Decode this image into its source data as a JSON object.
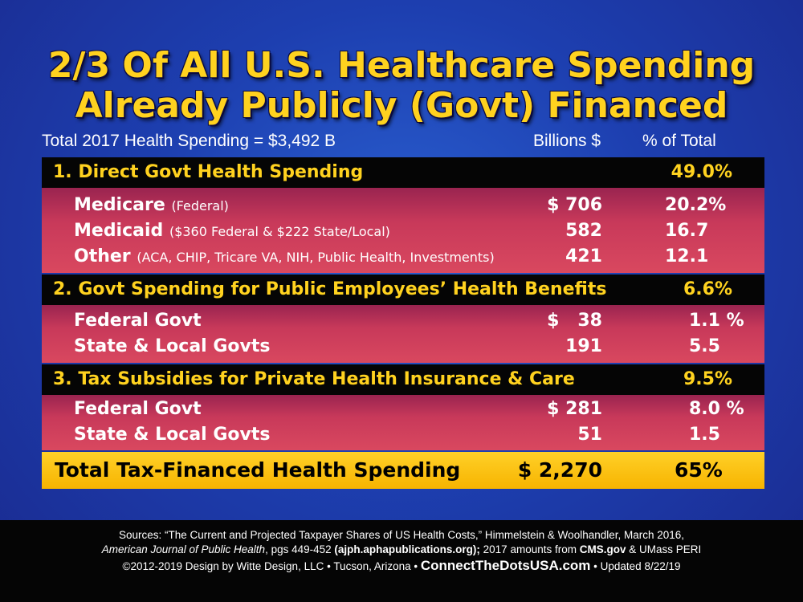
{
  "title": {
    "line1": "2/3 Of All U.S. Healthcare Spending",
    "line2": "Already Publicly (Govt) Financed"
  },
  "subheader": {
    "total_label": "Total 2017 Health Spending = $3,492 B",
    "col_billions": "Billions $",
    "col_percent": "% of Total"
  },
  "sections": [
    {
      "label": "1. Direct Govt Health Spending",
      "percent": "49.0%",
      "rows": [
        {
          "label": "Medicare",
          "note": "(Federal)",
          "amount": "$ 706",
          "percent": "20.2%"
        },
        {
          "label": "Medicaid",
          "note": "($360 Federal & $222 State/Local)",
          "amount": "582",
          "percent": "16.7"
        },
        {
          "label": "Other",
          "note": "(ACA, CHIP, Tricare VA, NIH, Public Health, Investments)",
          "amount": "421",
          "percent": "12.1"
        }
      ]
    },
    {
      "label": "2. Govt Spending for Public Employees’ Health Benefits",
      "percent": "6.6%",
      "rows": [
        {
          "label": "Federal Govt",
          "note": "",
          "amount": "$   38",
          "percent": "1.1 %"
        },
        {
          "label": "State & Local Govts",
          "note": "",
          "amount": "191",
          "percent": "5.5"
        }
      ]
    },
    {
      "label": "3. Tax Subsidies for Private Health Insurance & Care",
      "percent": "9.5%",
      "rows": [
        {
          "label": "Federal Govt",
          "note": "",
          "amount": "$ 281",
          "percent": "8.0 %"
        },
        {
          "label": "State & Local Govts",
          "note": "",
          "amount": "51",
          "percent": "1.5"
        }
      ]
    }
  ],
  "total": {
    "label": "Total Tax-Financed Health Spending",
    "amount": "$ 2,270",
    "percent": "65%"
  },
  "footer": {
    "line1": "Sources: “The Current and Projected Taxpayer Shares of US Health Costs,” Himmelstein & Woolhandler, March 2016,",
    "line2_journal": "American Journal of Public Health",
    "line2_pages": ", pgs 449-452 ",
    "line2_url": "(ajph.aphapublications.org);",
    "line2_amounts": " 2017 amounts from ",
    "line2_cms": "CMS.gov",
    "line2_end": " & UMass PERI",
    "line3_copyright": "©2012-2019 Design by Witte Design, LLC • Tucson, Arizona • ",
    "line3_site": "ConnectTheDotsUSA.com",
    "line3_updated": " • Updated 8/22/19"
  },
  "colors": {
    "title_yellow": "#ffd21f",
    "section_bg": "#050505",
    "row_bg": "#c8395a",
    "total_bg": "#ffc814",
    "background_blue": "#1d3fb0"
  }
}
